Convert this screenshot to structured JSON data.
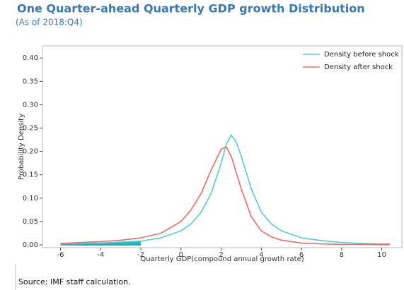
{
  "chart_data": {
    "type": "line",
    "title": "One Quarter-ahead Quarterly GDP growth Distribution",
    "subtitle": "(As of 2018:Q4)",
    "x_label": "Quarterly GDP(compound annual growth rate)",
    "y_label": "Probability Density",
    "source": "Source: IMF staff calculation.",
    "x": [
      -6,
      -5,
      -4,
      -3,
      -2,
      -1,
      0,
      0.5,
      1,
      1.5,
      2,
      2.25,
      2.5,
      2.75,
      3,
      3.5,
      4,
      4.5,
      5,
      6,
      7,
      8,
      9,
      10,
      10.4
    ],
    "series": [
      {
        "name": "Density before shock",
        "color": "#4fd0cf",
        "values": [
          0.002,
          0.003,
          0.004,
          0.006,
          0.008,
          0.015,
          0.03,
          0.045,
          0.07,
          0.11,
          0.175,
          0.215,
          0.235,
          0.22,
          0.19,
          0.12,
          0.07,
          0.045,
          0.03,
          0.015,
          0.009,
          0.005,
          0.003,
          0.002,
          0.002
        ]
      },
      {
        "name": "Density after shock",
        "color": "#f06a6a",
        "values": [
          0.003,
          0.005,
          0.007,
          0.01,
          0.015,
          0.025,
          0.05,
          0.075,
          0.11,
          0.16,
          0.205,
          0.21,
          0.19,
          0.155,
          0.12,
          0.06,
          0.03,
          0.017,
          0.01,
          0.004,
          0.002,
          0.001,
          0.001,
          0.0005,
          0.0005
        ]
      }
    ],
    "shade_range": [
      -6,
      -2
    ],
    "shade_color": "#17b3bd",
    "xlim": [
      -6.9,
      11
    ],
    "xticks": [
      -6,
      -4,
      -2,
      0,
      2,
      4,
      6,
      8,
      10
    ],
    "ylim": [
      -0.006,
      0.426
    ],
    "yticks": [
      {
        "value": 0,
        "label": "0.00"
      },
      0.05,
      {
        "value": 0.1,
        "label": "0.10"
      },
      0.15,
      {
        "value": 0.2,
        "label": "0.20"
      },
      0.25,
      {
        "value": 0.3,
        "label": "0.30"
      },
      0.35,
      {
        "value": 0.4,
        "label": "0.40"
      }
    ],
    "legend": "upper right"
  }
}
